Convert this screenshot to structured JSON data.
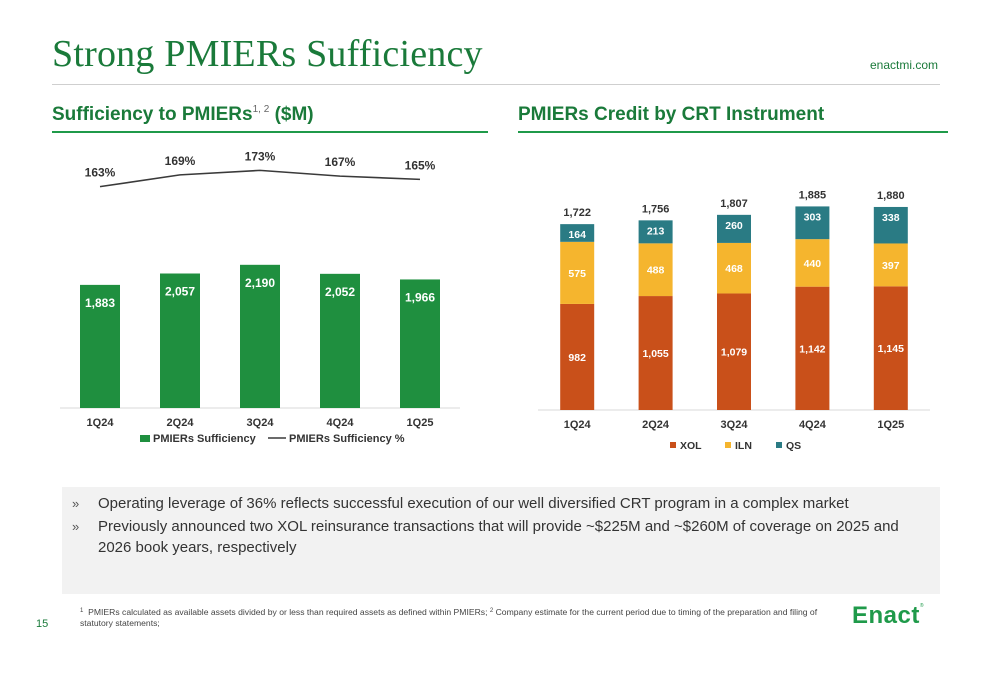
{
  "header": {
    "title": "Strong PMIERs Sufficiency",
    "site": "enactmi.com"
  },
  "left_section": {
    "heading": "Sufficiency to PMIERs",
    "heading_sup": "1, 2",
    "heading_suffix": " ($M)"
  },
  "right_section": {
    "heading": "PMIERs Credit by CRT Instrument"
  },
  "bullets": [
    "Operating leverage of 36% reflects successful execution of our well diversified CRT program in a complex market",
    "Previously announced two XOL reinsurance transactions that will provide ~$225M and ~$260M of coverage on 2025 and 2026 book years, respectively"
  ],
  "bullet_marker": "»",
  "footnote": {
    "sup1": "1",
    "text1": "PMIERs calculated as available assets divided by or less than required assets as defined within PMIERs;",
    "sup2": "2",
    "text2": "Company estimate for the current period due to timing of the preparation and filing of statutory statements;"
  },
  "page_number": "15",
  "logo": {
    "text": "Enact",
    "mark": "®"
  },
  "colors": {
    "green_bar": "#1f8f3f",
    "line": "#3a3a3a",
    "xol": "#c9501a",
    "iln": "#f5b52e",
    "qs": "#2a7b84"
  },
  "chart_data": [
    {
      "type": "bar",
      "categories": [
        "1Q24",
        "2Q24",
        "3Q24",
        "4Q24",
        "1Q25"
      ],
      "series": [
        {
          "name": "PMIERs Sufficiency",
          "type": "bar",
          "values": [
            1883,
            2057,
            2190,
            2052,
            1966
          ],
          "labels": [
            "1,883",
            "2,057",
            "2,190",
            "2,052",
            "1,966"
          ]
        },
        {
          "name": "PMIERs Sufficiency %",
          "type": "line",
          "values": [
            163,
            169,
            173,
            167,
            165
          ],
          "labels": [
            "163%",
            "169%",
            "173%",
            "167%",
            "165%"
          ]
        }
      ],
      "ylim": [
        0,
        2600
      ],
      "line_ylim": [
        100,
        180
      ],
      "legend": "bottom",
      "grid": false
    },
    {
      "type": "bar",
      "stacked": true,
      "categories": [
        "1Q24",
        "2Q24",
        "3Q24",
        "4Q24",
        "1Q25"
      ],
      "series": [
        {
          "name": "XOL",
          "values": [
            982,
            1055,
            1079,
            1142,
            1145
          ],
          "labels": [
            "982",
            "1,055",
            "1,079",
            "1,142",
            "1,145"
          ]
        },
        {
          "name": "ILN",
          "values": [
            575,
            488,
            468,
            440,
            397
          ],
          "labels": [
            "575",
            "488",
            "468",
            "440",
            "397"
          ]
        },
        {
          "name": "QS",
          "values": [
            164,
            213,
            260,
            303,
            338
          ],
          "labels": [
            "164",
            "213",
            "260",
            "303",
            "338"
          ]
        }
      ],
      "totals": [
        "1,722",
        "1,756",
        "1,807",
        "1,885",
        "1,880"
      ],
      "ylim": [
        0,
        2000
      ],
      "legend": "bottom",
      "grid": false
    }
  ]
}
